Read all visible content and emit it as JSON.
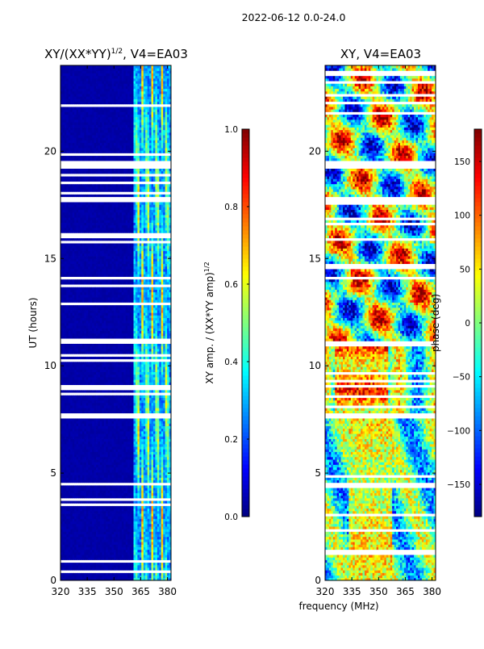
{
  "suptitle": "2022-06-12 0.0-24.0",
  "colors": {
    "jet": [
      "#00007f",
      "#0000ff",
      "#007fff",
      "#00ffff",
      "#7fff7f",
      "#ffff00",
      "#ff7f00",
      "#ff0000",
      "#7f0000"
    ],
    "gap": "#ffffff",
    "axis": "#000000"
  },
  "chart_data": [
    {
      "type": "heatmap",
      "title_main": "XY/(XX*YY)",
      "title_sup": "1/2",
      "title_rest": ", V4=EA03",
      "xlabel": "",
      "ylabel": "UT (hours)",
      "xlim": [
        320,
        382
      ],
      "ylim": [
        0,
        24
      ],
      "xticks": [
        320,
        335,
        350,
        365,
        380
      ],
      "yticks": [
        0,
        5,
        10,
        15,
        20
      ],
      "quantity": "normalized XY amplitude",
      "background_value": 0.03,
      "rfi_band_mhz": [
        361,
        382
      ],
      "flagged_ut_bands": [
        [
          19.2,
          19.6
        ],
        [
          17.7,
          17.9
        ],
        [
          16.0,
          16.1
        ],
        [
          14.0,
          14.15
        ],
        [
          11.0,
          11.15
        ],
        [
          7.6,
          7.75
        ],
        [
          4.45,
          4.6
        ],
        [
          0.8,
          0.9
        ]
      ],
      "colorbar": {
        "label_main": "XY amp. / (XX*YY amp)",
        "label_sup": "1/2",
        "range": [
          0.0,
          1.0
        ],
        "ticks": [
          "0.0",
          "0.2",
          "0.4",
          "0.6",
          "0.8",
          "1.0"
        ]
      }
    },
    {
      "type": "heatmap",
      "title": "XY, V4=EA03",
      "xlabel": "frequency (MHz)",
      "ylabel": "",
      "xlim": [
        320,
        382
      ],
      "ylim": [
        0,
        24
      ],
      "xticks": [
        320,
        335,
        350,
        365,
        380
      ],
      "yticks": [
        0,
        5,
        10,
        15,
        20
      ],
      "quantity": "XY phase (deg)",
      "flagged_ut_bands": [
        [
          19.2,
          19.6
        ],
        [
          17.7,
          17.9
        ],
        [
          7.6,
          7.75
        ],
        [
          4.45,
          4.6
        ]
      ],
      "colorbar": {
        "label": "phase (deg)",
        "range": [
          -180,
          180
        ],
        "ticks": [
          "−150",
          "−100",
          "−50",
          "0",
          "50",
          "100",
          "150"
        ]
      }
    }
  ]
}
